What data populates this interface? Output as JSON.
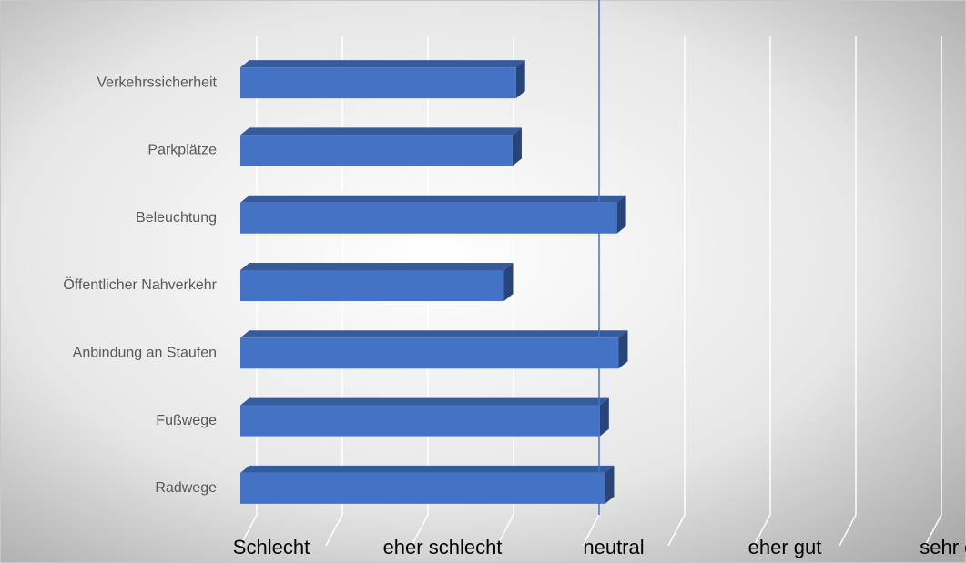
{
  "chart_data": {
    "type": "bar3d_horizontal",
    "categories": [
      "Verkehrssicherheit",
      "Parkplätze",
      "Beleuchtung",
      "Öffentlicher Nahverkehr",
      "Anbindung an Staufen",
      "Fußwege",
      "Radwege"
    ],
    "values": [
      2.61,
      2.59,
      3.2,
      2.54,
      3.21,
      3.1,
      3.13
    ],
    "color": "#4472c4",
    "xlim": [
      1,
      5
    ],
    "xticks": [
      {
        "value": 1,
        "label": "Schlecht"
      },
      {
        "value": 2,
        "label": "eher schlecht"
      },
      {
        "value": 3,
        "label": "neutral"
      },
      {
        "value": 4,
        "label": "eher gut"
      },
      {
        "value": 5,
        "label": "sehr gut"
      }
    ],
    "minor_xticks": [
      1.5,
      2.5,
      3.5,
      4.5
    ],
    "reference_line": {
      "value": 3,
      "color": "#4472c4"
    },
    "grid": true
  }
}
